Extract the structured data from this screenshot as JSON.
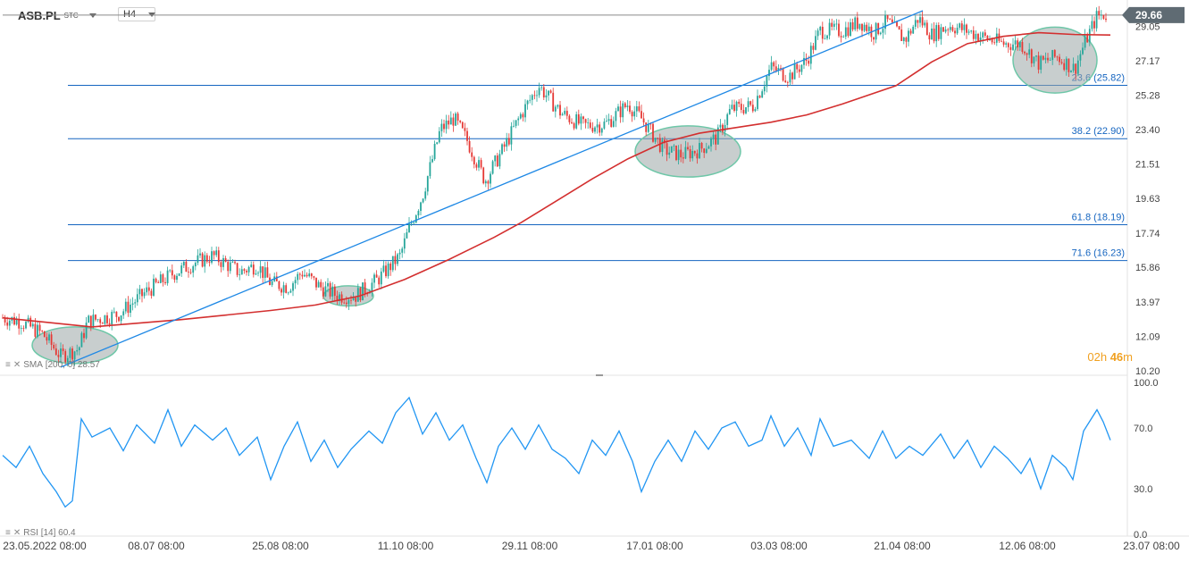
{
  "header": {
    "symbol": "ASB.PL",
    "exchange": "STC",
    "timeframe": "H4"
  },
  "countdown": {
    "hours": "02",
    "h_unit": "h",
    "minutes": "46",
    "m_unit": "m"
  },
  "indicators": {
    "sma_label": "SMA",
    "sma_params": "[200, 0]",
    "sma_value": "28.57",
    "rsi_label": "RSI",
    "rsi_params": "[14]",
    "rsi_value": "60.4"
  },
  "colors": {
    "candle_up": "#26a69a",
    "candle_down": "#e53935",
    "sma": "#d32f2f",
    "trendline": "#1e88e5",
    "fib": "#1565c0",
    "rsi": "#2196f3",
    "highlight_fill": "#9aa5a5",
    "highlight_stroke": "#6ec7a8",
    "price_badge": "#5f6b73",
    "countdown": "#f0a020"
  },
  "chart_data": [
    {
      "type": "candlestick",
      "title": "",
      "x_ticks": [
        "23.05.2022 08:00",
        "08.07 08:00",
        "25.08 08:00",
        "11.10 08:00",
        "29.11 08:00",
        "17.01 08:00",
        "03.03 08:00",
        "21.04 08:00",
        "12.06 08:00",
        "23.07 08:00"
      ],
      "y_ticks": [
        10.2,
        12.09,
        13.97,
        15.86,
        17.74,
        19.63,
        21.51,
        23.4,
        25.28,
        27.17,
        29.05
      ],
      "y_tick_labels": [
        "10.20",
        "12.09",
        "13.97",
        "15.86",
        "17.74",
        "19.63",
        "21.51",
        "23.40",
        "25.28",
        "27.17",
        "29.05"
      ],
      "ylim": [
        10.2,
        29.95
      ],
      "last_price": 29.66,
      "last_price_label": "29.66",
      "price_path": [
        [
          0,
          13.1
        ],
        [
          20,
          12.9
        ],
        [
          45,
          12.2
        ],
        [
          65,
          11.0
        ],
        [
          85,
          11.4
        ],
        [
          95,
          12.9
        ],
        [
          130,
          13.3
        ],
        [
          160,
          14.5
        ],
        [
          190,
          15.5
        ],
        [
          215,
          16.1
        ],
        [
          235,
          16.5
        ],
        [
          265,
          15.6
        ],
        [
          285,
          16.0
        ],
        [
          300,
          15.0
        ],
        [
          320,
          14.8
        ],
        [
          335,
          15.6
        ],
        [
          355,
          14.8
        ],
        [
          375,
          14.3
        ],
        [
          395,
          14.3
        ],
        [
          420,
          15.2
        ],
        [
          445,
          16.5
        ],
        [
          455,
          18.0
        ],
        [
          470,
          19.8
        ],
        [
          490,
          23.4
        ],
        [
          505,
          24.0
        ],
        [
          520,
          22.8
        ],
        [
          540,
          20.6
        ],
        [
          560,
          22.3
        ],
        [
          580,
          24.2
        ],
        [
          600,
          25.8
        ],
        [
          625,
          24.3
        ],
        [
          650,
          23.6
        ],
        [
          675,
          23.7
        ],
        [
          700,
          24.8
        ],
        [
          715,
          24.0
        ],
        [
          740,
          22.3
        ],
        [
          760,
          22.0
        ],
        [
          780,
          22.3
        ],
        [
          800,
          23.0
        ],
        [
          815,
          24.5
        ],
        [
          840,
          24.7
        ],
        [
          860,
          26.8
        ],
        [
          880,
          26.3
        ],
        [
          900,
          27.2
        ],
        [
          915,
          28.8
        ],
        [
          940,
          28.8
        ],
        [
          960,
          29.3
        ],
        [
          975,
          28.7
        ],
        [
          990,
          29.3
        ],
        [
          1010,
          28.3
        ],
        [
          1025,
          29.5
        ],
        [
          1040,
          28.6
        ],
        [
          1060,
          29.1
        ],
        [
          1080,
          28.8
        ],
        [
          1100,
          28.4
        ],
        [
          1120,
          28.1
        ],
        [
          1140,
          28.1
        ],
        [
          1160,
          27.0
        ],
        [
          1180,
          27.4
        ],
        [
          1200,
          26.7
        ],
        [
          1210,
          28.0
        ],
        [
          1225,
          29.6
        ],
        [
          1235,
          29.7
        ]
      ],
      "sma": {
        "name": "SMA [200, 0]",
        "points": [
          [
            0,
            13.1
          ],
          [
            100,
            12.6
          ],
          [
            200,
            13.0
          ],
          [
            300,
            13.5
          ],
          [
            350,
            13.8
          ],
          [
            400,
            14.3
          ],
          [
            450,
            15.2
          ],
          [
            500,
            16.3
          ],
          [
            550,
            17.5
          ],
          [
            580,
            18.3
          ],
          [
            620,
            19.5
          ],
          [
            660,
            20.7
          ],
          [
            700,
            21.8
          ],
          [
            740,
            22.7
          ],
          [
            780,
            23.2
          ],
          [
            820,
            23.5
          ],
          [
            860,
            23.8
          ],
          [
            900,
            24.2
          ],
          [
            940,
            24.8
          ],
          [
            1000,
            25.8
          ],
          [
            1040,
            27.1
          ],
          [
            1080,
            28.1
          ],
          [
            1120,
            28.5
          ],
          [
            1160,
            28.7
          ],
          [
            1200,
            28.6
          ],
          [
            1240,
            28.57
          ]
        ]
      },
      "trendline": {
        "from": [
          65,
          10.4
        ],
        "to": [
          1030,
          29.9
        ]
      },
      "fibonacci": [
        {
          "label": "23.6 (25.82)",
          "value": 25.82
        },
        {
          "label": "38.2 (22.90)",
          "value": 22.9
        },
        {
          "label": "61.8 (18.19)",
          "value": 18.19
        },
        {
          "label": "71.6 (16.23)",
          "value": 16.23
        }
      ],
      "horizontal_line": 29.66,
      "highlights": [
        {
          "center": [
            81,
            11.6
          ],
          "rx": 48,
          "ry_value": 1.0
        },
        {
          "center": [
            387,
            14.3
          ],
          "rx": 28,
          "ry_value": 0.55
        },
        {
          "center": [
            767,
            22.2
          ],
          "rx": 59,
          "ry_value": 1.4
        },
        {
          "center": [
            1178,
            27.2
          ],
          "rx": 47,
          "ry_value": 1.8
        }
      ]
    },
    {
      "type": "line",
      "title": "",
      "y_ticks": [
        0.0,
        30.0,
        70.0,
        100.0
      ],
      "y_tick_labels": [
        "0.0",
        "30.0",
        "70.0",
        "100.0"
      ],
      "ylim": [
        0,
        100
      ],
      "series": [
        {
          "name": "RSI [14]",
          "points": [
            [
              0,
              52
            ],
            [
              15,
              44
            ],
            [
              30,
              58
            ],
            [
              45,
              40
            ],
            [
              60,
              28
            ],
            [
              70,
              18
            ],
            [
              78,
              22
            ],
            [
              88,
              76
            ],
            [
              100,
              64
            ],
            [
              120,
              70
            ],
            [
              135,
              55
            ],
            [
              150,
              72
            ],
            [
              170,
              60
            ],
            [
              185,
              82
            ],
            [
              200,
              58
            ],
            [
              215,
              72
            ],
            [
              235,
              62
            ],
            [
              250,
              70
            ],
            [
              265,
              52
            ],
            [
              285,
              64
            ],
            [
              300,
              36
            ],
            [
              315,
              58
            ],
            [
              330,
              74
            ],
            [
              345,
              48
            ],
            [
              360,
              62
            ],
            [
              375,
              44
            ],
            [
              390,
              56
            ],
            [
              410,
              68
            ],
            [
              425,
              60
            ],
            [
              440,
              80
            ],
            [
              455,
              90
            ],
            [
              470,
              66
            ],
            [
              485,
              80
            ],
            [
              500,
              62
            ],
            [
              515,
              72
            ],
            [
              530,
              50
            ],
            [
              542,
              34
            ],
            [
              555,
              58
            ],
            [
              570,
              70
            ],
            [
              585,
              56
            ],
            [
              600,
              72
            ],
            [
              615,
              56
            ],
            [
              630,
              50
            ],
            [
              645,
              40
            ],
            [
              660,
              62
            ],
            [
              675,
              52
            ],
            [
              690,
              68
            ],
            [
              705,
              48
            ],
            [
              715,
              28
            ],
            [
              730,
              48
            ],
            [
              745,
              62
            ],
            [
              760,
              48
            ],
            [
              775,
              68
            ],
            [
              790,
              56
            ],
            [
              805,
              70
            ],
            [
              820,
              74
            ],
            [
              835,
              58
            ],
            [
              850,
              62
            ],
            [
              860,
              78
            ],
            [
              875,
              58
            ],
            [
              890,
              70
            ],
            [
              905,
              52
            ],
            [
              915,
              76
            ],
            [
              930,
              58
            ],
            [
              950,
              62
            ],
            [
              970,
              50
            ],
            [
              985,
              68
            ],
            [
              1000,
              50
            ],
            [
              1015,
              58
            ],
            [
              1030,
              52
            ],
            [
              1050,
              66
            ],
            [
              1065,
              50
            ],
            [
              1080,
              62
            ],
            [
              1095,
              44
            ],
            [
              1110,
              58
            ],
            [
              1125,
              50
            ],
            [
              1140,
              40
            ],
            [
              1150,
              50
            ],
            [
              1162,
              30
            ],
            [
              1175,
              52
            ],
            [
              1190,
              44
            ],
            [
              1198,
              36
            ],
            [
              1210,
              68
            ],
            [
              1225,
              82
            ],
            [
              1232,
              74
            ],
            [
              1240,
              62
            ]
          ]
        }
      ],
      "grid": false
    }
  ]
}
